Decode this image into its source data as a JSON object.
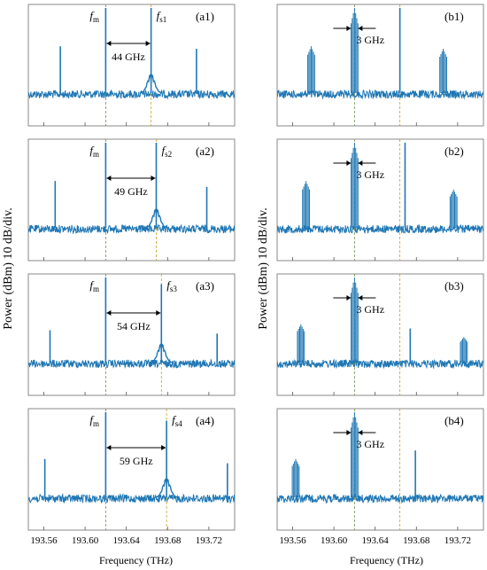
{
  "figure": {
    "ylabel": "Power (dBm) 10 dB/div.",
    "xlabel": "Frequency (THz)",
    "x_ticks": [
      "193.56",
      "193.60",
      "193.64",
      "193.68",
      "193.72"
    ],
    "trace_color": "#1f77b4",
    "marker_color_fm": "#6f8f4f",
    "marker_color_fs": "#c8a020"
  },
  "chart_data": [
    {
      "type": "line",
      "panel": "(a1)",
      "xlabel": "",
      "ylabel": "",
      "xlim": [
        193.545,
        193.745
      ],
      "markers": {
        "fm": 193.62,
        "fs": 193.664
      },
      "labels": {
        "fm": "f",
        "fm_sub": "m",
        "fs": "f",
        "fs_sub": "s1",
        "spacing": "44 GHz"
      },
      "peaks": [
        {
          "x": 193.576,
          "y": 0.55
        },
        {
          "x": 193.62,
          "y": 1.0
        },
        {
          "x": 193.664,
          "y": 1.0
        },
        {
          "x": 193.708,
          "y": 0.52
        }
      ]
    },
    {
      "type": "line",
      "panel": "(a2)",
      "xlabel": "",
      "ylabel": "",
      "xlim": [
        193.545,
        193.745
      ],
      "markers": {
        "fm": 193.62,
        "fs": 193.669
      },
      "labels": {
        "fm": "f",
        "fm_sub": "m",
        "fs": "f",
        "fs_sub": "s2",
        "spacing": "49 GHz"
      },
      "peaks": [
        {
          "x": 193.571,
          "y": 0.55
        },
        {
          "x": 193.62,
          "y": 1.0
        },
        {
          "x": 193.669,
          "y": 1.0
        },
        {
          "x": 193.718,
          "y": 0.48
        }
      ]
    },
    {
      "type": "line",
      "panel": "(a3)",
      "xlabel": "",
      "ylabel": "",
      "xlim": [
        193.545,
        193.745
      ],
      "markers": {
        "fm": 193.62,
        "fs": 193.674
      },
      "labels": {
        "fm": "f",
        "fm_sub": "m",
        "fs": "f",
        "fs_sub": "s3",
        "spacing": "54 GHz"
      },
      "peaks": [
        {
          "x": 193.566,
          "y": 0.38
        },
        {
          "x": 193.62,
          "y": 1.0
        },
        {
          "x": 193.674,
          "y": 0.92
        },
        {
          "x": 193.728,
          "y": 0.34
        }
      ]
    },
    {
      "type": "line",
      "panel": "(a4)",
      "xlabel": "",
      "ylabel": "",
      "xlim": [
        193.545,
        193.745
      ],
      "markers": {
        "fm": 193.62,
        "fs": 193.679
      },
      "labels": {
        "fm": "f",
        "fm_sub": "m",
        "fs": "f",
        "fs_sub": "s4",
        "spacing": "59 GHz"
      },
      "peaks": [
        {
          "x": 193.561,
          "y": 0.45
        },
        {
          "x": 193.62,
          "y": 1.0
        },
        {
          "x": 193.679,
          "y": 0.9
        },
        {
          "x": 193.738,
          "y": 0.4
        }
      ]
    },
    {
      "type": "line",
      "panel": "(b1)",
      "xlabel": "",
      "ylabel": "",
      "xlim": [
        193.545,
        193.745
      ],
      "markers": {
        "fm": 193.62,
        "fs": 193.664
      },
      "labels": {
        "spacing": "3 GHz"
      },
      "comb_groups": [
        {
          "x": 193.578,
          "y": 0.55
        },
        {
          "x": 193.62,
          "y": 1.0
        },
        {
          "x": 193.706,
          "y": 0.52
        }
      ],
      "peaks": [
        {
          "x": 193.664,
          "y": 1.0
        }
      ]
    },
    {
      "type": "line",
      "panel": "(b2)",
      "xlabel": "",
      "ylabel": "",
      "xlim": [
        193.545,
        193.745
      ],
      "markers": {
        "fm": 193.62,
        "fs": 193.664
      },
      "labels": {
        "spacing": "3 GHz"
      },
      "comb_groups": [
        {
          "x": 193.573,
          "y": 0.55
        },
        {
          "x": 193.62,
          "y": 1.0
        },
        {
          "x": 193.716,
          "y": 0.45
        }
      ],
      "peaks": [
        {
          "x": 193.669,
          "y": 1.0
        }
      ]
    },
    {
      "type": "line",
      "panel": "(b3)",
      "xlabel": "",
      "ylabel": "",
      "xlim": [
        193.545,
        193.745
      ],
      "markers": {
        "fm": 193.62,
        "fs": 193.664
      },
      "labels": {
        "spacing": "3 GHz"
      },
      "comb_groups": [
        {
          "x": 193.568,
          "y": 0.45
        },
        {
          "x": 193.62,
          "y": 1.0
        },
        {
          "x": 193.726,
          "y": 0.3
        }
      ],
      "peaks": [
        {
          "x": 193.674,
          "y": 0.4
        }
      ]
    },
    {
      "type": "line",
      "panel": "(b4)",
      "xlabel": "",
      "ylabel": "",
      "xlim": [
        193.545,
        193.745
      ],
      "markers": {
        "fm": 193.62,
        "fs": 193.664
      },
      "labels": {
        "spacing": "3 GHz"
      },
      "comb_groups": [
        {
          "x": 193.563,
          "y": 0.45
        },
        {
          "x": 193.62,
          "y": 1.0
        }
      ],
      "peaks": [
        {
          "x": 193.679,
          "y": 0.55
        }
      ]
    }
  ]
}
